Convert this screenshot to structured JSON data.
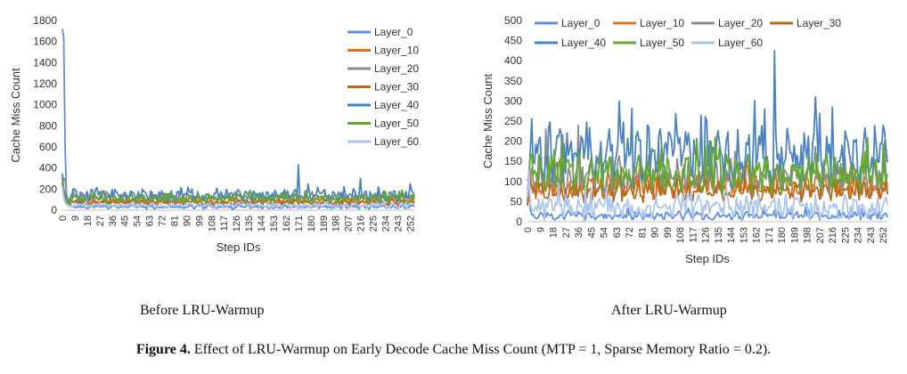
{
  "figure": {
    "label": "Figure 4.",
    "caption": "Effect of LRU-Warmup on Early Decode Cache Miss Count (MTP = 1, Sparse Memory Ratio = 0.2).",
    "subcaption_left": "Before LRU-Warmup",
    "subcaption_right": "After LRU-Warmup"
  },
  "chart_data": [
    {
      "type": "line",
      "title": "",
      "xlabel": "Step IDs",
      "ylabel": "Cache Miss Count",
      "ylim": [
        0,
        1800
      ],
      "yticks": [
        0,
        200,
        400,
        600,
        800,
        1000,
        1200,
        1400,
        1600,
        1800
      ],
      "x_tick_labels": [
        "0",
        "9",
        "18",
        "27",
        "36",
        "45",
        "54",
        "63",
        "72",
        "81",
        "90",
        "99",
        "108",
        "117",
        "126",
        "135",
        "144",
        "153",
        "162",
        "171",
        "180",
        "189",
        "198",
        "207",
        "216",
        "225",
        "234",
        "243",
        "252"
      ],
      "x_range": [
        0,
        255
      ],
      "legend_position": "top-right",
      "grid": false,
      "series": [
        {
          "name": "Layer_0",
          "color": "#5b8ee6",
          "start": [
            1720,
            1640,
            600,
            150,
            80,
            60,
            55
          ],
          "base": 30,
          "amp": 15
        },
        {
          "name": "Layer_10",
          "color": "#e8701d",
          "start": [
            300,
            150,
            110
          ],
          "base": 85,
          "amp": 25
        },
        {
          "name": "Layer_20",
          "color": "#8c8c8c",
          "start": [
            320,
            290,
            300
          ],
          "base": 120,
          "amp": 30
        },
        {
          "name": "Layer_30",
          "color": "#b96917",
          "start": [
            250,
            160,
            100
          ],
          "base": 70,
          "amp": 20
        },
        {
          "name": "Layer_40",
          "color": "#4a82c2",
          "start": [
            350,
            200,
            150
          ],
          "base": 140,
          "amp": 50,
          "spikes": [
            [
              171,
              430
            ],
            [
              216,
              300
            ],
            [
              252,
              250
            ]
          ]
        },
        {
          "name": "Layer_50",
          "color": "#62a830",
          "start": [
            280,
            180,
            130
          ],
          "base": 110,
          "amp": 35
        },
        {
          "name": "Layer_60",
          "color": "#a9c4ee",
          "start": [
            230,
            120,
            80
          ],
          "base": 45,
          "amp": 20
        }
      ]
    },
    {
      "type": "line",
      "title": "",
      "xlabel": "Step IDs",
      "ylabel": "Cache Miss Count",
      "ylim": [
        0,
        500
      ],
      "yticks": [
        0,
        50,
        100,
        150,
        200,
        250,
        300,
        350,
        400,
        450,
        500
      ],
      "x_tick_labels": [
        "0",
        "9",
        "18",
        "27",
        "36",
        "45",
        "54",
        "63",
        "72",
        "81",
        "90",
        "99",
        "108",
        "117",
        "126",
        "135",
        "144",
        "153",
        "162",
        "171",
        "180",
        "189",
        "198",
        "207",
        "216",
        "225",
        "234",
        "243",
        "252"
      ],
      "x_range": [
        0,
        255
      ],
      "legend_position": "top",
      "grid": false,
      "series": [
        {
          "name": "Layer_0",
          "color": "#5b8ee6",
          "start": [
            40,
            130,
            30
          ],
          "base": 15,
          "amp": 8
        },
        {
          "name": "Layer_10",
          "color": "#e8701d",
          "start": [
            40,
            70
          ],
          "base": 90,
          "amp": 25
        },
        {
          "name": "Layer_20",
          "color": "#8c8c8c",
          "start": [
            100,
            120
          ],
          "base": 110,
          "amp": 40,
          "spikes": [
            [
              13,
              230
            ],
            [
              25,
              215
            ],
            [
              36,
              240
            ]
          ]
        },
        {
          "name": "Layer_30",
          "color": "#b96917",
          "start": [
            40,
            60
          ],
          "base": 75,
          "amp": 20
        },
        {
          "name": "Layer_40",
          "color": "#4a82c2",
          "start": [
            60,
            110
          ],
          "base": 160,
          "amp": 60,
          "spikes": [
            [
              175,
              425
            ],
            [
              204,
              310
            ],
            [
              216,
              285
            ],
            [
              252,
              240
            ]
          ]
        },
        {
          "name": "Layer_50",
          "color": "#62a830",
          "start": [
            80,
            110
          ],
          "base": 120,
          "amp": 40
        },
        {
          "name": "Layer_60",
          "color": "#a9c4ee",
          "start": [
            60,
            130,
            40
          ],
          "base": 35,
          "amp": 25
        }
      ]
    }
  ]
}
